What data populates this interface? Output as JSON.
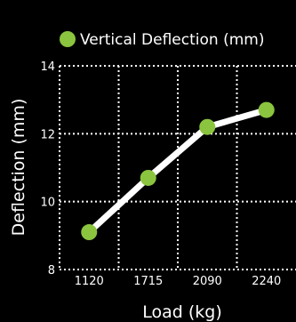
{
  "chart_data": {
    "type": "line",
    "legend_position": "top",
    "grid": true,
    "grid_style": "dotted",
    "xlabel": "Load (kg)",
    "ylabel": "Deflection (mm)",
    "categories": [
      "1120",
      "1715",
      "2090",
      "2240"
    ],
    "ylim": [
      8,
      14
    ],
    "yticks": [
      "8",
      "10",
      "12",
      "14"
    ],
    "series": [
      {
        "name": "Vertical Deflection (mm)",
        "values": [
          9.1,
          10.7,
          12.2,
          12.7
        ]
      }
    ],
    "colors": {
      "background": "#000000",
      "line": "#ffffff",
      "marker": "#8bc53f",
      "grid": "#ffffff",
      "text": "#ffffff"
    }
  }
}
